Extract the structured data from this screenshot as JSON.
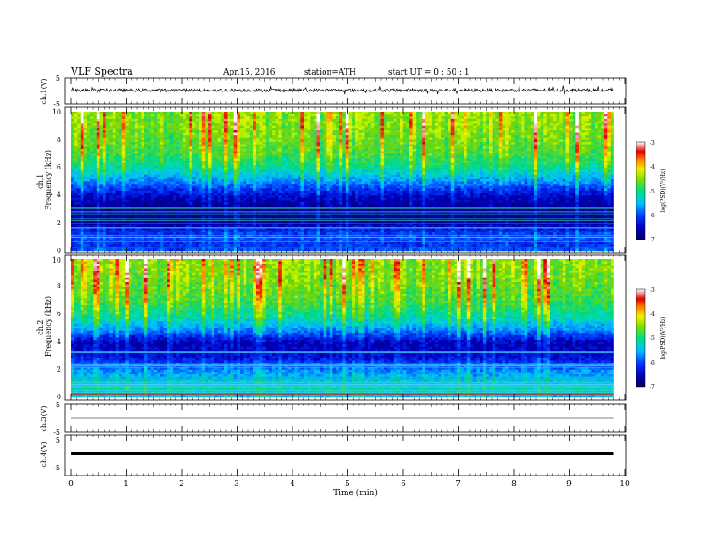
{
  "header": {
    "title": "VLF  Spectra",
    "date": "Apr.15, 2016",
    "station": "station=ATH",
    "start": "start  UT =   0 : 50 : 1"
  },
  "chart_data": [
    {
      "type": "line",
      "name": "ch1-waveform",
      "ylabel": "ch.1(V)",
      "yticks": [
        "5",
        "-5"
      ],
      "ylim": [
        -5,
        5
      ],
      "xlim": [
        0,
        10
      ],
      "baseline": 0.3,
      "amplitude": 0.6
    },
    {
      "type": "heatmap",
      "name": "ch1-spectrogram",
      "ylabel": "ch.1\nFrequency  (kHz)",
      "yticks": [
        "0",
        "2",
        "4",
        "6",
        "8",
        "10"
      ],
      "ylim": [
        0,
        10
      ],
      "xlim": [
        0,
        9.8
      ],
      "colorbar": {
        "label": "log(PSD)(V²/Hz)",
        "ticks": [
          "-3",
          "-4",
          "-5",
          "-6",
          "-7"
        ],
        "range": [
          -7,
          -3
        ]
      },
      "profile_khz_logpsd": [
        [
          0,
          -6.0
        ],
        [
          0.5,
          -6.2
        ],
        [
          1.0,
          -6.0
        ],
        [
          1.5,
          -6.3
        ],
        [
          2.0,
          -6.7
        ],
        [
          3.0,
          -6.8
        ],
        [
          4.0,
          -6.5
        ],
        [
          5.0,
          -5.8
        ],
        [
          6.0,
          -5.2
        ],
        [
          7.0,
          -4.9
        ],
        [
          8.0,
          -4.8
        ],
        [
          9.0,
          -4.7
        ],
        [
          10.0,
          -4.7
        ]
      ]
    },
    {
      "type": "heatmap",
      "name": "ch2-spectrogram",
      "ylabel": "ch.2\nFrequency  (kHz)",
      "yticks": [
        "0",
        "2",
        "4",
        "6",
        "8",
        "10"
      ],
      "ylim": [
        0,
        10
      ],
      "xlim": [
        0,
        9.8
      ],
      "colorbar": {
        "label": "log(PSD)(V²/Hz)",
        "ticks": [
          "-3",
          "-4",
          "-5",
          "-6",
          "-7"
        ],
        "range": [
          -7,
          -3
        ]
      },
      "profile_khz_logpsd": [
        [
          0,
          -5.6
        ],
        [
          0.5,
          -5.2
        ],
        [
          1.0,
          -5.3
        ],
        [
          1.5,
          -5.6
        ],
        [
          2.0,
          -5.8
        ],
        [
          3.0,
          -6.5
        ],
        [
          4.0,
          -6.6
        ],
        [
          5.0,
          -5.7
        ],
        [
          6.0,
          -5.2
        ],
        [
          7.0,
          -4.9
        ],
        [
          8.0,
          -4.8
        ],
        [
          9.0,
          -4.7
        ],
        [
          10.0,
          -4.7
        ]
      ]
    },
    {
      "type": "line",
      "name": "ch3-waveform",
      "ylabel": "ch.3(V)",
      "yticks": [
        "5",
        "-5"
      ],
      "ylim": [
        -5,
        5
      ],
      "xlim": [
        0,
        9.8
      ],
      "baseline": 0.0,
      "amplitude": 0.02
    },
    {
      "type": "line",
      "name": "ch4-waveform",
      "ylabel": "ch.4(V)",
      "yticks": [
        "5",
        "-5"
      ],
      "ylim": [
        -5,
        5
      ],
      "xlim": [
        0,
        9.8
      ],
      "baseline": 0.0,
      "amplitude": 0.05
    }
  ],
  "xaxis": {
    "label": "Time  (min)",
    "ticks": [
      "0",
      "1",
      "2",
      "3",
      "4",
      "5",
      "6",
      "7",
      "8",
      "9",
      "10"
    ],
    "xlim": [
      0,
      10
    ]
  }
}
